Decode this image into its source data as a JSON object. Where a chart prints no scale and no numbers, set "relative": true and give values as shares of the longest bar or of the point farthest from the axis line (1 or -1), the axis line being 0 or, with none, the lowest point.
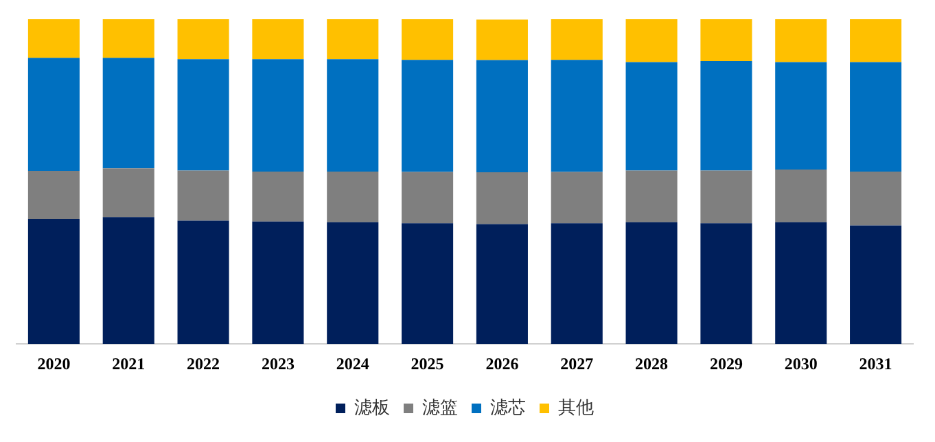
{
  "chart_data": {
    "type": "bar",
    "stacked": true,
    "relative": true,
    "legend": "bottom",
    "grid": false,
    "categories": [
      "2020",
      "2021",
      "2022",
      "2023",
      "2024",
      "2025",
      "2026",
      "2027",
      "2028",
      "2029",
      "2030",
      "2031"
    ],
    "series": [
      {
        "name": "滤板",
        "color": "#001f5b",
        "values": [
          0.385,
          0.391,
          0.38,
          0.377,
          0.375,
          0.372,
          0.369,
          0.372,
          0.375,
          0.372,
          0.375,
          0.365
        ]
      },
      {
        "name": "滤篮",
        "color": "#7f7f7f",
        "values": [
          0.148,
          0.15,
          0.154,
          0.154,
          0.156,
          0.158,
          0.16,
          0.158,
          0.159,
          0.162,
          0.162,
          0.166
        ]
      },
      {
        "name": "滤芯",
        "color": "#0070c0",
        "values": [
          0.348,
          0.34,
          0.343,
          0.346,
          0.346,
          0.345,
          0.345,
          0.345,
          0.334,
          0.337,
          0.331,
          0.337
        ]
      },
      {
        "name": "其他",
        "color": "#ffc000",
        "values": [
          0.119,
          0.119,
          0.123,
          0.123,
          0.123,
          0.125,
          0.125,
          0.125,
          0.132,
          0.129,
          0.132,
          0.132
        ]
      }
    ]
  }
}
